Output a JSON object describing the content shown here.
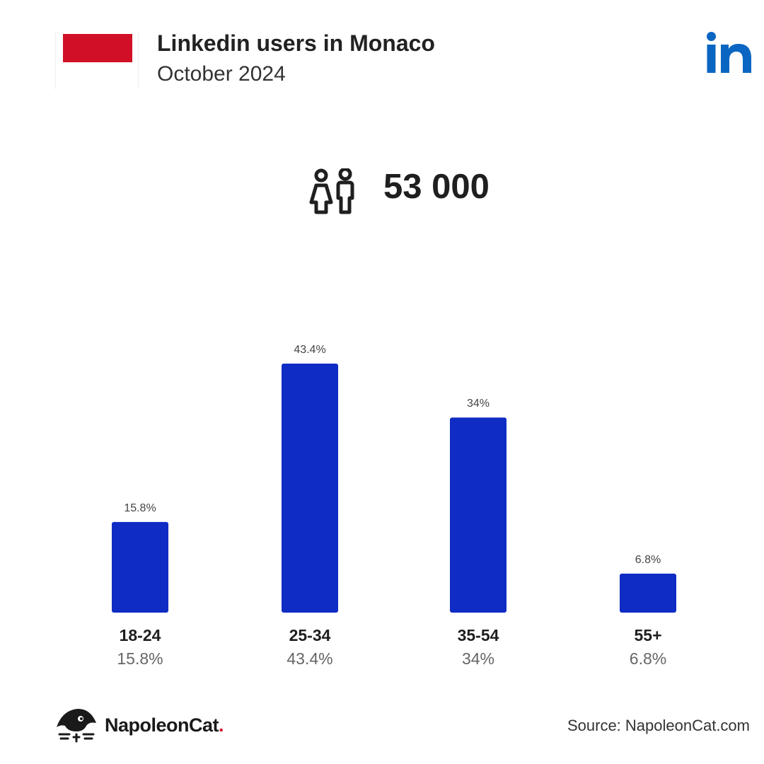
{
  "header": {
    "title": "Linkedin users in Monaco",
    "subtitle": "October 2024",
    "flag_color_top": "#d11027",
    "flag_color_bottom": "#ffffff",
    "platform_logo": "in",
    "platform_color": "#0a66c2"
  },
  "summary": {
    "icon": "people-icon",
    "total_users": "53 000"
  },
  "chart_data": {
    "type": "bar",
    "categories": [
      "18-24",
      "25-34",
      "35-54",
      "55+"
    ],
    "values": [
      15.8,
      43.4,
      34,
      6.8
    ],
    "value_labels": [
      "15.8%",
      "43.4%",
      "34%",
      "6.8%"
    ],
    "bar_color": "#0f2cc4",
    "ylim": [
      0,
      43.4
    ],
    "grid": false,
    "legend": false
  },
  "footer": {
    "brand_name": "NapoleonCat",
    "brand_dot": ".",
    "brand_dot_color": "#d8132b",
    "source": "Source: NapoleonCat.com"
  }
}
